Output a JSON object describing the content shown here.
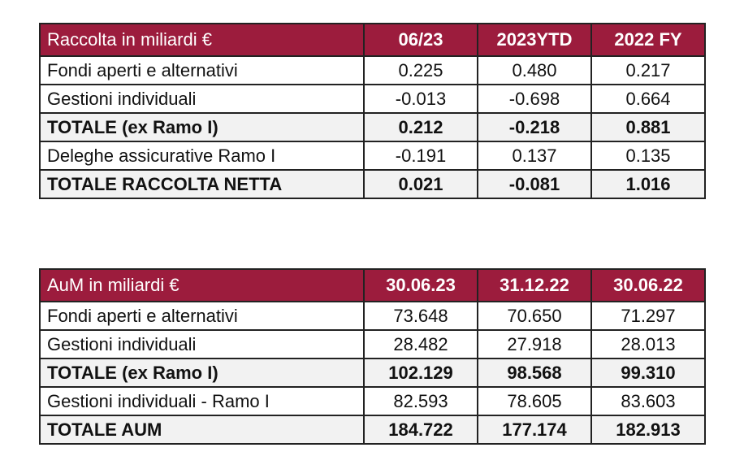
{
  "tables": [
    {
      "header": [
        "Raccolta in miliardi €",
        "06/23",
        "2023YTD",
        "2022 FY"
      ],
      "rows": [
        [
          "Fondi aperti e alternativi",
          "0.225",
          "0.480",
          "0.217"
        ],
        [
          "Gestioni individuali",
          "-0.013",
          "-0.698",
          "0.664"
        ],
        [
          "TOTALE (ex Ramo I)",
          "0.212",
          "-0.218",
          "0.881"
        ],
        [
          "Deleghe assicurative Ramo I",
          "-0.191",
          "0.137",
          "0.135"
        ],
        [
          "TOTALE RACCOLTA NETTA",
          "0.021",
          "-0.081",
          "1.016"
        ]
      ],
      "bold_rows": [
        2,
        4
      ]
    },
    {
      "header": [
        "AuM in miliardi €",
        "30.06.23",
        "31.12.22",
        "30.06.22"
      ],
      "rows": [
        [
          "Fondi aperti e alternativi",
          "73.648",
          "70.650",
          "71.297"
        ],
        [
          "Gestioni individuali",
          "28.482",
          "27.918",
          "28.013"
        ],
        [
          "TOTALE (ex Ramo I)",
          "102.129",
          "98.568",
          "99.310"
        ],
        [
          "Gestioni individuali - Ramo I",
          "82.593",
          "78.605",
          "83.603"
        ],
        [
          "TOTALE AUM",
          "184.722",
          "177.174",
          "182.913"
        ]
      ],
      "bold_rows": [
        2,
        4
      ]
    }
  ]
}
